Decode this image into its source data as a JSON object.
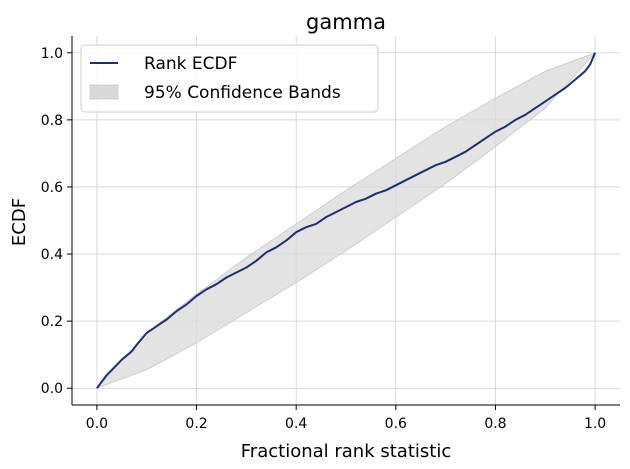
{
  "chart_data": {
    "type": "line",
    "title": "gamma",
    "xlabel": "Fractional rank statistic",
    "ylabel": "ECDF",
    "xlim": [
      -0.05,
      1.05
    ],
    "ylim": [
      -0.05,
      1.05
    ],
    "xticks": [
      0.0,
      0.2,
      0.4,
      0.6,
      0.8,
      1.0
    ],
    "xtick_labels": [
      "0.0",
      "0.2",
      "0.4",
      "0.6",
      "0.8",
      "1.0"
    ],
    "yticks": [
      0.0,
      0.2,
      0.4,
      0.6,
      0.8,
      1.0
    ],
    "ytick_labels": [
      "0.0",
      "0.2",
      "0.4",
      "0.6",
      "0.8",
      "1.0"
    ],
    "grid": true,
    "legend_position": "upper-left",
    "series": [
      {
        "name": "Rank ECDF",
        "color": "#1f2f6e",
        "x": [
          0.0,
          0.01,
          0.02,
          0.03,
          0.05,
          0.07,
          0.08,
          0.1,
          0.12,
          0.14,
          0.16,
          0.18,
          0.2,
          0.22,
          0.24,
          0.26,
          0.28,
          0.3,
          0.32,
          0.34,
          0.36,
          0.38,
          0.4,
          0.42,
          0.44,
          0.46,
          0.48,
          0.5,
          0.52,
          0.54,
          0.56,
          0.58,
          0.6,
          0.62,
          0.64,
          0.66,
          0.68,
          0.7,
          0.72,
          0.74,
          0.76,
          0.78,
          0.8,
          0.82,
          0.84,
          0.86,
          0.88,
          0.9,
          0.92,
          0.94,
          0.96,
          0.98,
          0.99,
          1.0
        ],
        "y": [
          0.0,
          0.02,
          0.04,
          0.055,
          0.085,
          0.11,
          0.13,
          0.165,
          0.185,
          0.205,
          0.23,
          0.25,
          0.275,
          0.295,
          0.31,
          0.33,
          0.345,
          0.36,
          0.38,
          0.405,
          0.42,
          0.44,
          0.465,
          0.48,
          0.49,
          0.51,
          0.525,
          0.54,
          0.555,
          0.565,
          0.58,
          0.59,
          0.605,
          0.62,
          0.635,
          0.65,
          0.665,
          0.675,
          0.69,
          0.705,
          0.725,
          0.745,
          0.765,
          0.78,
          0.8,
          0.815,
          0.835,
          0.855,
          0.875,
          0.895,
          0.92,
          0.945,
          0.965,
          1.0
        ]
      },
      {
        "name": "95% Confidence Bands",
        "color": "#d9d9d9",
        "x": [
          0.0,
          0.1,
          0.2,
          0.3,
          0.4,
          0.5,
          0.6,
          0.7,
          0.8,
          0.9,
          1.0
        ],
        "lower": [
          0.0,
          0.055,
          0.135,
          0.225,
          0.315,
          0.41,
          0.51,
          0.61,
          0.72,
          0.835,
          1.0
        ],
        "upper": [
          0.0,
          0.165,
          0.28,
          0.39,
          0.49,
          0.59,
          0.685,
          0.78,
          0.865,
          0.945,
          1.0
        ]
      }
    ]
  }
}
